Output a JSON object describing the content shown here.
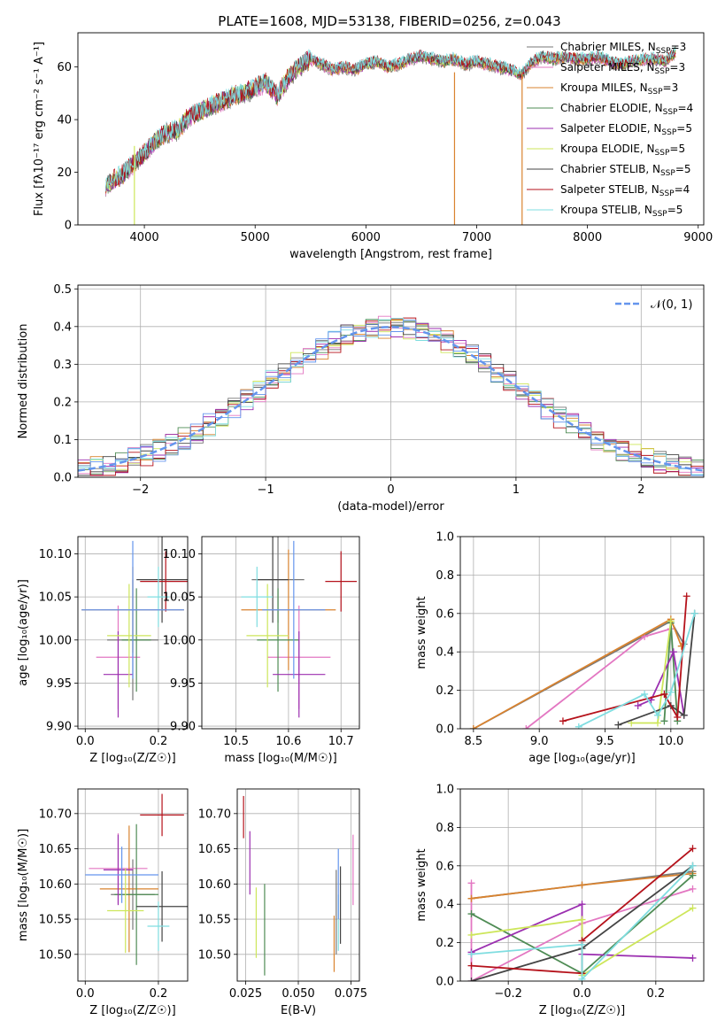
{
  "title": "PLATE=1608, MJD=53138, FIBERID=0256, z=0.043",
  "chart_data": [
    {
      "type": "line",
      "id": "spectrum",
      "xlabel": "wavelength [Angstrom, rest frame]",
      "ylabel": "Flux [fλ10⁻¹⁷ erg cm⁻² s⁻¹ A⁻¹]",
      "xlim": [
        3400,
        9050
      ],
      "ylim": [
        0,
        73
      ],
      "xticks": [
        4000,
        5000,
        6000,
        7000,
        8000,
        9000
      ],
      "yticks": [
        0,
        20,
        40,
        60
      ],
      "grid": false,
      "legend_position": "top-right",
      "x": [
        3650,
        3800,
        3900,
        4000,
        4100,
        4200,
        4300,
        4400,
        4500,
        4600,
        4700,
        4800,
        4900,
        5000,
        5100,
        5200,
        5300,
        5400,
        5500,
        5600,
        5700,
        5800,
        5900,
        6000,
        6100,
        6200,
        6300,
        6400,
        6500,
        6600,
        6700,
        6800,
        6900,
        7000,
        7100,
        7200,
        7300,
        7400,
        7500,
        7600,
        7700,
        7800,
        7900,
        8000,
        8100,
        8200,
        8300,
        8400,
        8500,
        8600,
        8700,
        8800
      ],
      "y": [
        15,
        19,
        23,
        27,
        32,
        35,
        36,
        41,
        43,
        45,
        47,
        49,
        50,
        52,
        54,
        49,
        56,
        60,
        63,
        61,
        59,
        60,
        59,
        61,
        62,
        60,
        61,
        63,
        64,
        63,
        62,
        63,
        61,
        62,
        61,
        60,
        59,
        57,
        62,
        64,
        63,
        64,
        63,
        63,
        64,
        62,
        61,
        62,
        63,
        63,
        62,
        66
      ],
      "series": [
        {
          "name": "Chabrier MILES, N_SSP=3",
          "color": "#777777"
        },
        {
          "name": "Salpeter MILES, N_SSP=3",
          "color": "#e377c2"
        },
        {
          "name": "Kroupa MILES, N_SSP=3",
          "color": "#d9832f"
        },
        {
          "name": "Chabrier ELODIE, N_SSP=4",
          "color": "#4f8c55"
        },
        {
          "name": "Salpeter ELODIE, N_SSP=5",
          "color": "#9b2fb0"
        },
        {
          "name": "Kroupa ELODIE, N_SSP=5",
          "color": "#cde65a"
        },
        {
          "name": "Chabrier STELIB, N_SSP=5",
          "color": "#444444"
        },
        {
          "name": "Salpeter STELIB, N_SSP=4",
          "color": "#b5121b"
        },
        {
          "name": "Kroupa STELIB, N_SSP=5",
          "color": "#7fdde0"
        }
      ]
    },
    {
      "type": "histogram",
      "id": "residuals",
      "xlabel": "(data-model)/error",
      "ylabel": "Normed distribution",
      "xlim": [
        -2.5,
        2.5
      ],
      "ylim": [
        0,
        0.51
      ],
      "xticks": [
        -2,
        -1,
        0,
        1,
        2
      ],
      "yticks": [
        0.0,
        0.1,
        0.2,
        0.3,
        0.4,
        0.5
      ],
      "grid": true,
      "legend_position": "top-right",
      "reference_curve": {
        "label": "𝒩(0, 1)",
        "mean": 0,
        "sigma": 1,
        "color": "#6495ed"
      }
    },
    {
      "type": "scatter",
      "id": "age-vs-Z",
      "xlabel": "Z [log₁₀(Z/Z☉)]",
      "ylabel": "age  [log₁₀(age/yr)]",
      "xlim": [
        -0.02,
        0.28
      ],
      "ylim": [
        9.897,
        10.12
      ],
      "xticks": [
        0.0,
        0.2
      ],
      "yticks": [
        9.9,
        9.95,
        10.0,
        10.05,
        10.1
      ],
      "grid": true,
      "points": [
        {
          "x": 0.13,
          "y": 10.0,
          "xerr": 0.07,
          "yerr": 0.07,
          "color": "#777777"
        },
        {
          "x": 0.09,
          "y": 9.98,
          "xerr": 0.06,
          "yerr": 0.06,
          "color": "#e377c2"
        },
        {
          "x": 0.13,
          "y": 10.035,
          "xerr": 0.14,
          "yerr": 0.05,
          "color": "#d9832f"
        },
        {
          "x": 0.14,
          "y": 10.0,
          "xerr": 0.04,
          "yerr": 0.06,
          "color": "#4f8c55"
        },
        {
          "x": 0.09,
          "y": 9.96,
          "xerr": 0.04,
          "yerr": 0.05,
          "color": "#9b2fb0"
        },
        {
          "x": 0.12,
          "y": 10.005,
          "xerr": 0.06,
          "yerr": 0.06,
          "color": "#cde65a"
        },
        {
          "x": 0.21,
          "y": 10.07,
          "xerr": 0.07,
          "yerr": 0.05,
          "color": "#444444"
        },
        {
          "x": 0.22,
          "y": 10.068,
          "xerr": 0.07,
          "yerr": 0.035,
          "color": "#b5121b"
        },
        {
          "x": 0.2,
          "y": 10.05,
          "xerr": 0.03,
          "yerr": 0.035,
          "color": "#7fdde0"
        },
        {
          "x": 0.13,
          "y": 10.035,
          "xerr": 0.14,
          "yerr": 0.08,
          "color": "#6495ed"
        }
      ]
    },
    {
      "type": "scatter",
      "id": "age-vs-mass",
      "xlabel": "mass [log₁₀(M/M☉)]",
      "ylabel": "",
      "xlim": [
        10.435,
        10.735
      ],
      "ylim": [
        9.897,
        10.12
      ],
      "xticks": [
        10.5,
        10.6,
        10.7
      ],
      "yticks": [
        9.9,
        9.95,
        10.0,
        10.05,
        10.1
      ],
      "grid": true,
      "points": [
        {
          "x": 10.58,
          "y": 10.07,
          "xerr": 0.05,
          "yerr": 0.05,
          "color": "#777777"
        },
        {
          "x": 10.62,
          "y": 9.98,
          "xerr": 0.06,
          "yerr": 0.06,
          "color": "#e377c2"
        },
        {
          "x": 10.6,
          "y": 10.035,
          "xerr": 0.09,
          "yerr": 0.07,
          "color": "#d9832f"
        },
        {
          "x": 10.58,
          "y": 10.0,
          "xerr": 0.04,
          "yerr": 0.06,
          "color": "#4f8c55"
        },
        {
          "x": 10.62,
          "y": 9.96,
          "xerr": 0.05,
          "yerr": 0.05,
          "color": "#9b2fb0"
        },
        {
          "x": 10.56,
          "y": 10.005,
          "xerr": 0.04,
          "yerr": 0.06,
          "color": "#cde65a"
        },
        {
          "x": 10.57,
          "y": 10.07,
          "xerr": 0.03,
          "yerr": 0.05,
          "color": "#444444"
        },
        {
          "x": 10.7,
          "y": 10.068,
          "xerr": 0.03,
          "yerr": 0.035,
          "color": "#b5121b"
        },
        {
          "x": 10.54,
          "y": 10.05,
          "xerr": 0.03,
          "yerr": 0.035,
          "color": "#7fdde0"
        },
        {
          "x": 10.61,
          "y": 10.035,
          "xerr": 0.06,
          "yerr": 0.08,
          "color": "#6495ed"
        }
      ]
    },
    {
      "type": "line",
      "id": "massweight-vs-age",
      "xlabel": "age  [log₁₀(age/yr)]",
      "ylabel": "mass weight",
      "xlim": [
        8.4,
        10.25
      ],
      "ylim": [
        0,
        1.0
      ],
      "xticks": [
        8.5,
        9.0,
        9.5,
        10.0
      ],
      "yticks": [
        0.0,
        0.2,
        0.4,
        0.6,
        0.8,
        1.0
      ],
      "grid": true,
      "series": [
        {
          "color": "#777777",
          "points": [
            [
              8.5,
              0.0
            ],
            [
              10.0,
              0.56
            ],
            [
              10.1,
              0.44
            ]
          ]
        },
        {
          "color": "#e377c2",
          "points": [
            [
              8.9,
              0.0
            ],
            [
              9.8,
              0.48
            ],
            [
              10.0,
              0.52
            ]
          ]
        },
        {
          "color": "#d9832f",
          "points": [
            [
              8.5,
              0.0
            ],
            [
              10.0,
              0.57
            ],
            [
              10.08,
              0.43
            ]
          ]
        },
        {
          "color": "#4f8c55",
          "points": [
            [
              9.95,
              0.04
            ],
            [
              10.0,
              0.55
            ],
            [
              10.05,
              0.04
            ]
          ]
        },
        {
          "color": "#9b2fb0",
          "points": [
            [
              9.75,
              0.12
            ],
            [
              9.85,
              0.15
            ],
            [
              10.02,
              0.4
            ],
            [
              10.1,
              0.07
            ]
          ]
        },
        {
          "color": "#cde65a",
          "points": [
            [
              9.7,
              0.03
            ],
            [
              9.9,
              0.03
            ],
            [
              10.0,
              0.56
            ]
          ]
        },
        {
          "color": "#444444",
          "points": [
            [
              9.6,
              0.02
            ],
            [
              10.0,
              0.12
            ],
            [
              10.1,
              0.07
            ],
            [
              10.18,
              0.6
            ]
          ]
        },
        {
          "color": "#b5121b",
          "points": [
            [
              9.18,
              0.04
            ],
            [
              9.95,
              0.18
            ],
            [
              10.05,
              0.06
            ],
            [
              10.12,
              0.69
            ]
          ]
        },
        {
          "color": "#7fdde0",
          "points": [
            [
              9.3,
              0.01
            ],
            [
              9.8,
              0.18
            ],
            [
              9.9,
              0.07
            ],
            [
              10.0,
              0.19
            ],
            [
              10.18,
              0.6
            ]
          ]
        }
      ]
    },
    {
      "type": "scatter",
      "id": "mass-vs-Z",
      "xlabel": "Z [log₁₀(Z/Z☉)]",
      "ylabel": "mass [log₁₀(M/M☉)]",
      "xlim": [
        -0.02,
        0.28
      ],
      "ylim": [
        10.462,
        10.735
      ],
      "xticks": [
        0.0,
        0.2
      ],
      "yticks": [
        10.5,
        10.55,
        10.6,
        10.65,
        10.7
      ],
      "grid": true,
      "points": [
        {
          "x": 0.13,
          "y": 10.585,
          "xerr": 0.06,
          "yerr": 0.05,
          "color": "#777777"
        },
        {
          "x": 0.09,
          "y": 10.622,
          "xerr": 0.08,
          "yerr": 0.05,
          "color": "#e377c2"
        },
        {
          "x": 0.12,
          "y": 10.593,
          "xerr": 0.08,
          "yerr": 0.09,
          "color": "#d9832f"
        },
        {
          "x": 0.14,
          "y": 10.585,
          "xerr": 0.06,
          "yerr": 0.1,
          "color": "#4f8c55"
        },
        {
          "x": 0.09,
          "y": 10.62,
          "xerr": 0.04,
          "yerr": 0.05,
          "color": "#9b2fb0"
        },
        {
          "x": 0.11,
          "y": 10.562,
          "xerr": 0.05,
          "yerr": 0.06,
          "color": "#cde65a"
        },
        {
          "x": 0.21,
          "y": 10.568,
          "xerr": 0.07,
          "yerr": 0.05,
          "color": "#444444"
        },
        {
          "x": 0.21,
          "y": 10.698,
          "xerr": 0.06,
          "yerr": 0.03,
          "color": "#b5121b"
        },
        {
          "x": 0.2,
          "y": 10.54,
          "xerr": 0.03,
          "yerr": 0.035,
          "color": "#7fdde0"
        },
        {
          "x": 0.1,
          "y": 10.613,
          "xerr": 0.1,
          "yerr": 0.04,
          "color": "#6495ed"
        }
      ]
    },
    {
      "type": "scatter",
      "id": "mass-vs-ebv",
      "xlabel": "E(B-V)",
      "ylabel": "",
      "xlim": [
        0.021,
        0.079
      ],
      "ylim": [
        10.462,
        10.735
      ],
      "xticks": [
        0.025,
        0.05,
        0.075
      ],
      "yticks": [
        10.5,
        10.55,
        10.6,
        10.65,
        10.7
      ],
      "grid": true,
      "points": [
        {
          "x": 0.068,
          "y": 10.56,
          "xerr": 0,
          "yerr": 0.06,
          "color": "#777777"
        },
        {
          "x": 0.076,
          "y": 10.62,
          "xerr": 0,
          "yerr": 0.05,
          "color": "#e377c2"
        },
        {
          "x": 0.067,
          "y": 10.515,
          "xerr": 0,
          "yerr": 0.04,
          "color": "#d9832f"
        },
        {
          "x": 0.034,
          "y": 10.535,
          "xerr": 0,
          "yerr": 0.065,
          "color": "#4f8c55"
        },
        {
          "x": 0.027,
          "y": 10.63,
          "xerr": 0,
          "yerr": 0.045,
          "color": "#9b2fb0"
        },
        {
          "x": 0.03,
          "y": 10.545,
          "xerr": 0,
          "yerr": 0.05,
          "color": "#cde65a"
        },
        {
          "x": 0.07,
          "y": 10.57,
          "xerr": 0,
          "yerr": 0.055,
          "color": "#444444"
        },
        {
          "x": 0.024,
          "y": 10.695,
          "xerr": 0,
          "yerr": 0.03,
          "color": "#b5121b"
        },
        {
          "x": 0.069,
          "y": 10.545,
          "xerr": 0,
          "yerr": 0.04,
          "color": "#7fdde0"
        },
        {
          "x": 0.069,
          "y": 10.6,
          "xerr": 0,
          "yerr": 0.05,
          "color": "#6495ed"
        }
      ]
    },
    {
      "type": "line",
      "id": "massweight-vs-Z",
      "xlabel": "Z [log₁₀(Z/Z☉)]",
      "ylabel": "mass weight",
      "xlim": [
        -0.33,
        0.33
      ],
      "ylim": [
        0,
        1.0
      ],
      "xticks": [
        -0.2,
        0.0,
        0.2
      ],
      "yticks": [
        0.0,
        0.2,
        0.4,
        0.6,
        0.8,
        1.0
      ],
      "grid": true,
      "series": [
        {
          "color": "#777777",
          "points": [
            [
              -0.3,
              0.43
            ],
            [
              0.0,
              0.5
            ],
            [
              0.3,
              0.57
            ]
          ]
        },
        {
          "color": "#e377c2",
          "points": [
            [
              -0.3,
              0.51
            ],
            [
              -0.3,
              0.0
            ],
            [
              0.0,
              0.3
            ],
            [
              0.3,
              0.48
            ]
          ]
        },
        {
          "color": "#d9832f",
          "points": [
            [
              -0.3,
              0.43
            ],
            [
              0.0,
              0.5
            ],
            [
              0.3,
              0.56
            ]
          ]
        },
        {
          "color": "#4f8c55",
          "points": [
            [
              -0.3,
              0.35
            ],
            [
              0.0,
              0.04
            ],
            [
              0.3,
              0.55
            ]
          ]
        },
        {
          "color": "#9b2fb0",
          "points": [
            [
              -0.3,
              0.15
            ],
            [
              0.0,
              0.4
            ],
            [
              0.0,
              0.14
            ],
            [
              0.3,
              0.12
            ]
          ]
        },
        {
          "color": "#cde65a",
          "points": [
            [
              -0.3,
              0.24
            ],
            [
              0.0,
              0.32
            ],
            [
              0.0,
              0.03
            ],
            [
              0.3,
              0.38
            ]
          ]
        },
        {
          "color": "#444444",
          "points": [
            [
              -0.3,
              0.0
            ],
            [
              0.0,
              0.17
            ],
            [
              0.3,
              0.6
            ]
          ]
        },
        {
          "color": "#b5121b",
          "points": [
            [
              -0.3,
              0.08
            ],
            [
              0.0,
              0.04
            ],
            [
              0.0,
              0.21
            ],
            [
              0.3,
              0.69
            ]
          ]
        },
        {
          "color": "#7fdde0",
          "points": [
            [
              -0.3,
              0.14
            ],
            [
              0.0,
              0.19
            ],
            [
              0.0,
              0.01
            ],
            [
              0.3,
              0.6
            ]
          ]
        }
      ]
    }
  ]
}
